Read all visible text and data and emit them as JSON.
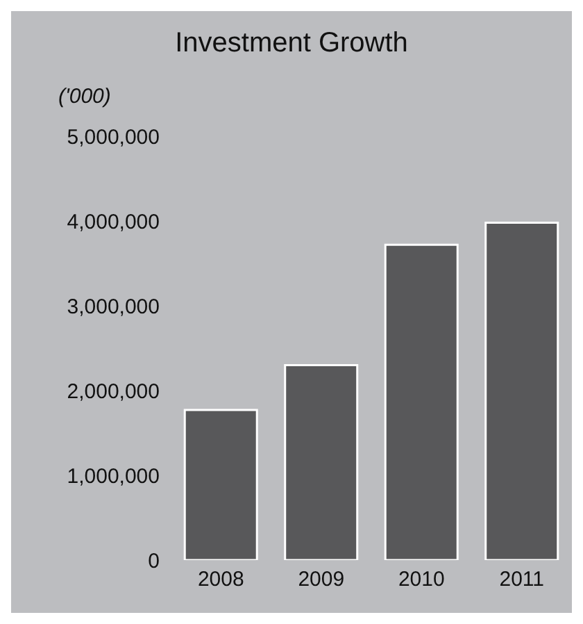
{
  "chart_data": {
    "type": "bar",
    "title": "Investment Growth",
    "ylabel": "('000)",
    "categories": [
      "2008",
      "2009",
      "2010",
      "2011"
    ],
    "values": [
      1770000,
      2300000,
      3720000,
      3980000
    ],
    "color": "#58585a",
    "ylim": [
      0,
      5000000
    ],
    "yticks": [
      0,
      {
        "value": 1000000,
        "label": "1,000,000"
      },
      {
        "value": 2000000,
        "label": "2,000,000"
      },
      {
        "value": 3000000,
        "label": "3,000,000"
      },
      {
        "value": 4000000,
        "label": "4,000,000"
      },
      {
        "value": 5000000,
        "label": "5,000,000"
      }
    ],
    "grid": false
  }
}
